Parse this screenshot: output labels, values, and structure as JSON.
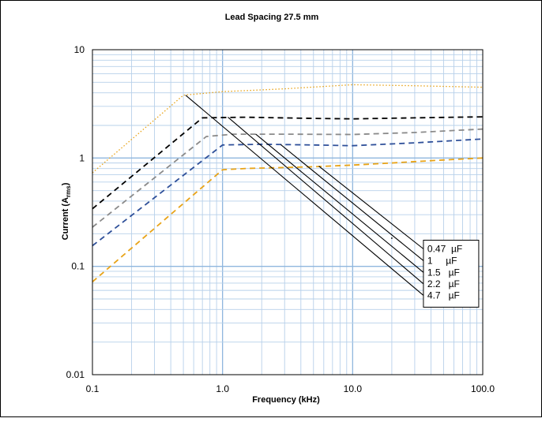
{
  "chart_data": {
    "type": "line",
    "title": "Lead Spacing 27.5 mm",
    "xlabel": "Frequency (kHz)",
    "ylabel": {
      "prefix": "Current (A",
      "sub": "rms",
      "suffix": ")"
    },
    "x_scale": "log",
    "y_scale": "log",
    "xlim": [
      0.1,
      100
    ],
    "ylim": [
      0.01,
      10
    ],
    "x_ticks": [
      {
        "value": 0.1,
        "label": "0.1"
      },
      {
        "value": 1,
        "label": "1.0"
      },
      {
        "value": 10,
        "label": "10.0"
      },
      {
        "value": 100,
        "label": "100.0"
      }
    ],
    "y_ticks": [
      {
        "value": 0.01,
        "label": "0.01"
      },
      {
        "value": 0.1,
        "label": "0.1"
      },
      {
        "value": 1,
        "label": "1"
      },
      {
        "value": 10,
        "label": "10"
      }
    ],
    "grid": true,
    "legend_position": "center-right",
    "series": [
      {
        "name": "0.47  µF",
        "color": "#E8A317",
        "dash": "dashed",
        "points": [
          [
            0.1,
            0.072
          ],
          [
            1.0,
            0.78
          ],
          [
            1.5,
            0.8
          ],
          [
            5,
            0.83
          ],
          [
            10,
            0.86
          ],
          [
            20,
            0.9
          ],
          [
            50,
            0.96
          ],
          [
            100,
            1.0
          ]
        ]
      },
      {
        "name": "1     µF",
        "color": "#2E4F99",
        "dash": "dashed",
        "points": [
          [
            0.1,
            0.155
          ],
          [
            1.0,
            1.32
          ],
          [
            2,
            1.34
          ],
          [
            5,
            1.32
          ],
          [
            10,
            1.3
          ],
          [
            30,
            1.38
          ],
          [
            100,
            1.5
          ]
        ]
      },
      {
        "name": "1.5   µF",
        "color": "#8A8A8A",
        "dash": "dashed",
        "points": [
          [
            0.1,
            0.23
          ],
          [
            0.75,
            1.58
          ],
          [
            1.2,
            1.66
          ],
          [
            3,
            1.66
          ],
          [
            10,
            1.65
          ],
          [
            30,
            1.72
          ],
          [
            100,
            1.85
          ]
        ]
      },
      {
        "name": "2.2   µF",
        "color": "#000000",
        "dash": "dashed",
        "points": [
          [
            0.1,
            0.34
          ],
          [
            0.7,
            2.35
          ],
          [
            1.5,
            2.38
          ],
          [
            5,
            2.32
          ],
          [
            10,
            2.3
          ],
          [
            30,
            2.35
          ],
          [
            100,
            2.4
          ]
        ]
      },
      {
        "name": "4.7   µF",
        "color": "#E8A317",
        "dash": "dotted",
        "points": [
          [
            0.1,
            0.73
          ],
          [
            0.5,
            3.8
          ],
          [
            1.0,
            4.1
          ],
          [
            3,
            4.35
          ],
          [
            10,
            4.75
          ],
          [
            30,
            4.65
          ],
          [
            100,
            4.5
          ]
        ]
      }
    ],
    "annotation_lines": [
      {
        "name": "0.47  µF",
        "points": [
          [
            5.5,
            0.84
          ],
          [
            35,
            0.145
          ]
        ]
      },
      {
        "name": "1     µF",
        "points": [
          [
            2.8,
            1.33
          ],
          [
            35,
            0.113
          ]
        ]
      },
      {
        "name": "1.5   µF",
        "points": [
          [
            1.8,
            1.66
          ],
          [
            35,
            0.088
          ]
        ]
      },
      {
        "name": "2.2   µF",
        "points": [
          [
            1.1,
            2.38
          ],
          [
            35,
            0.069
          ]
        ]
      },
      {
        "name": "4.7   µF",
        "points": [
          [
            0.52,
            3.8
          ],
          [
            35,
            0.054
          ]
        ]
      }
    ],
    "extra_mark": {
      "x": 20,
      "y": 0.182
    }
  }
}
